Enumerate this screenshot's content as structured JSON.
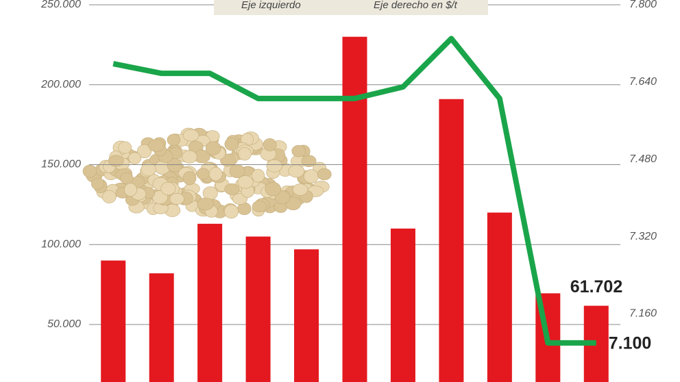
{
  "chart_data": {
    "type": "bar-line",
    "categories": [
      null,
      null,
      null,
      null,
      null,
      null,
      null,
      null,
      null,
      null,
      null
    ],
    "series": [
      {
        "name": "Eje izquierdo",
        "type": "bar",
        "color": "#e3191f",
        "values": [
          90000,
          82000,
          113000,
          105000,
          97000,
          230000,
          110000,
          191000,
          120000,
          69500,
          61702
        ],
        "value_labels": [
          null,
          null,
          null,
          null,
          null,
          null,
          null,
          null,
          null,
          null,
          "61.702"
        ]
      },
      {
        "name": "Eje derecho en $/t",
        "type": "line",
        "axis": "y2",
        "color": "#1aa54a",
        "values": [
          7678,
          7658,
          7658,
          7606,
          7606,
          7606,
          7630,
          7730,
          7606,
          7100,
          7100
        ],
        "value_labels": [
          null,
          null,
          null,
          null,
          null,
          null,
          null,
          null,
          null,
          null,
          "7.100"
        ]
      }
    ],
    "ylim": [
      14000,
      250000
    ],
    "yticks": [
      {
        "value": 50000,
        "label": "50.000"
      },
      {
        "value": 100000,
        "label": "100.000"
      },
      {
        "value": 150000,
        "label": "150.000"
      },
      {
        "value": 200000,
        "label": "200.000"
      },
      {
        "value": 250000,
        "label": "250.000"
      }
    ],
    "y2lim": [
      7019,
      7800
    ],
    "y2ticks": [
      {
        "value": 7160,
        "label": "7.160"
      },
      {
        "value": 7320,
        "label": "7.320"
      },
      {
        "value": 7480,
        "label": "7.480"
      },
      {
        "value": 7640,
        "label": "7.640"
      },
      {
        "value": 7800,
        "label": "7.800"
      }
    ],
    "grid": true
  }
}
